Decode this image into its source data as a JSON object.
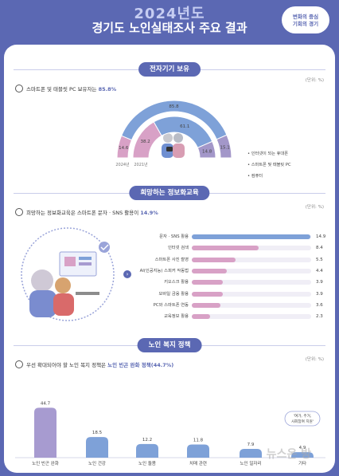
{
  "header": {
    "year": "2024년도",
    "title": "경기도 노인실태조사 주요 결과",
    "badge_line1": "변화의 중심",
    "badge_line2": "기회의 경기"
  },
  "sections": {
    "s1": {
      "title": "전자기기 보유",
      "unit": "(단위: %)",
      "question_prefix": "스마트폰 및 태블릿 PC 보유자는 ",
      "question_hi": "85.8%"
    },
    "s2": {
      "title": "희망하는 정보화교육",
      "unit": "(단위: %)",
      "question_prefix": "희망하는 정보화교육은 스마트폰 문자 · SNS 활용이 ",
      "question_hi": "14.9%"
    },
    "s3": {
      "title": "노인 복지 정책",
      "unit": "(단위: %)",
      "question_prefix": "우선 확대되어야 할 노인 복지 정책은 ",
      "question_hi": "노인 빈곤 완화 정책(44.7%)"
    }
  },
  "watermark": "뉴스온 방",
  "colors": {
    "primary": "#5b68b3",
    "blue": "#7ea1d8",
    "pink": "#d8a1c6",
    "lavender": "#a79bd0",
    "purple": "#a397c9",
    "track": "#f0eef6"
  },
  "chart_data": [
    {
      "type": "donut-arc",
      "legend": [
        "인터넷이 되는 휴대폰",
        "스마트폰 및 태블릿 PC",
        "컴퓨터"
      ],
      "rings": [
        "2024년",
        "2021년"
      ],
      "series": [
        {
          "name": "2024년",
          "values": [
            14.6,
            85.8,
            15.1
          ]
        },
        {
          "name": "2021년",
          "values": [
            38.2,
            61.1,
            14.8
          ]
        }
      ]
    },
    {
      "type": "bar",
      "orientation": "horizontal",
      "categories": [
        "문자 · SNS 활용",
        "인터넷 검색",
        "스마트폰 사진 촬영",
        "AI(인공지능) 스피커 작동법",
        "키오스크 활용",
        "모바일 금융 활용",
        "PC와 스마트폰 연동",
        "교육정보 활용"
      ],
      "values": [
        14.9,
        8.4,
        5.5,
        4.4,
        3.9,
        3.9,
        3.6,
        2.3
      ],
      "xlim": [
        0,
        15
      ]
    },
    {
      "type": "bar",
      "orientation": "vertical",
      "categories": [
        "노인 빈곤 완화",
        "노인 건강",
        "노인 돌봄",
        "치매 관련",
        "노인 일자리",
        "기타"
      ],
      "values": [
        44.7,
        18.5,
        12.2,
        11.8,
        7.9,
        4.9
      ],
      "annotation": "'여가, 주거, 사회참여 지원'",
      "ylim": [
        0,
        50
      ]
    }
  ]
}
